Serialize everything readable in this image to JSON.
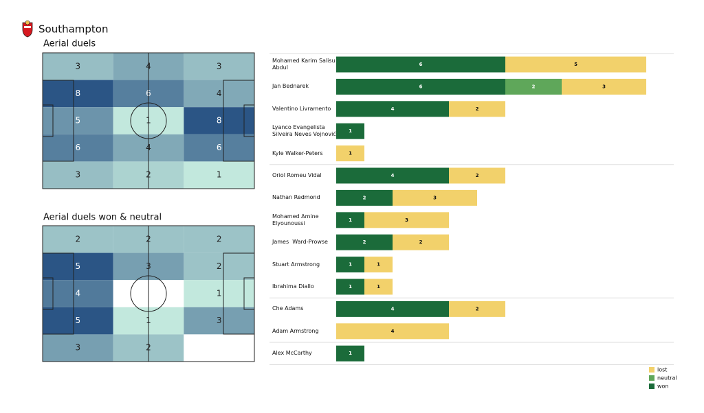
{
  "header": {
    "title": "Southampton"
  },
  "chart_data": [
    {
      "type": "heatmap",
      "title": "Aerial duels",
      "values": [
        [
          3,
          4,
          3
        ],
        [
          8,
          6,
          4
        ],
        [
          5,
          1,
          8
        ],
        [
          6,
          4,
          6
        ],
        [
          3,
          2,
          1
        ]
      ],
      "colors": [
        "#c2e8dd",
        "#2b5585"
      ]
    },
    {
      "type": "heatmap",
      "title": "Aerial duels won & neutral",
      "values": [
        [
          2,
          2,
          2
        ],
        [
          5,
          3,
          2
        ],
        [
          4,
          null,
          1
        ],
        [
          5,
          1,
          3
        ],
        [
          3,
          2,
          null
        ]
      ],
      "colors": [
        "#c2e8dd",
        "#2b5585"
      ]
    },
    {
      "type": "bar",
      "orientation": "horizontal",
      "stacked": true,
      "categories": [
        "Mohamed Karim Salisu Abdul",
        "Jan Bednarek",
        "Valentino Livramento",
        "Lyanco Evangelista Silveira Neves Vojnović",
        "Kyle Walker-Peters",
        "Oriol Romeu Vidal",
        "Nathan Redmond",
        "Mohamed Amine Elyounoussi",
        "James  Ward-Prowse",
        "Stuart Armstrong",
        "Ibrahima Diallo",
        "Che Adams",
        "Adam Armstrong",
        "Alex McCarthy"
      ],
      "series": [
        {
          "name": "won",
          "color": "#1b6b3a",
          "values": [
            6,
            6,
            4,
            1,
            0,
            4,
            2,
            1,
            2,
            1,
            1,
            4,
            0,
            1
          ]
        },
        {
          "name": "neutral",
          "color": "#5fa75a",
          "values": [
            0,
            2,
            0,
            0,
            0,
            0,
            0,
            0,
            0,
            0,
            0,
            0,
            0,
            0
          ]
        },
        {
          "name": "lost",
          "color": "#f2d16b",
          "values": [
            5,
            3,
            2,
            0,
            1,
            2,
            3,
            3,
            2,
            1,
            1,
            2,
            4,
            0
          ]
        }
      ]
    }
  ]
}
